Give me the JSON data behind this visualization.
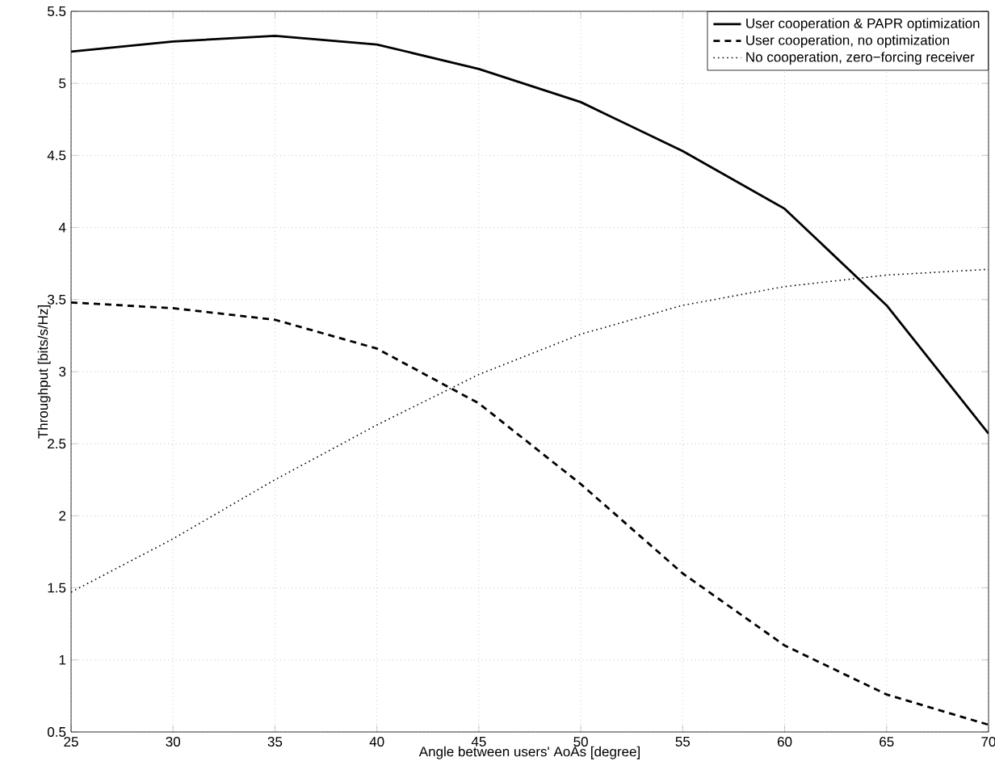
{
  "chart_data": {
    "type": "line",
    "xlabel": "Angle between users' AoAs [degree]",
    "ylabel": "Throughput [bits/s/Hz]",
    "x": [
      25,
      30,
      35,
      40,
      45,
      50,
      55,
      60,
      65,
      70
    ],
    "series": [
      {
        "name": "User cooperation & PAPR optimization",
        "color": "#000000",
        "line_style": "solid",
        "values": [
          5.22,
          5.29,
          5.33,
          5.27,
          5.1,
          4.87,
          4.53,
          4.13,
          3.46,
          2.57
        ]
      },
      {
        "name": "User cooperation, no optimization",
        "color": "#000000",
        "line_style": "dashed",
        "values": [
          3.48,
          3.44,
          3.36,
          3.16,
          2.78,
          2.22,
          1.6,
          1.1,
          0.76,
          0.55
        ]
      },
      {
        "name": "No cooperation, zero−forcing receiver",
        "color": "#000000",
        "line_style": "dotted",
        "values": [
          1.47,
          1.84,
          2.25,
          2.63,
          2.98,
          3.26,
          3.46,
          3.59,
          3.67,
          3.71
        ]
      }
    ],
    "xlim": [
      25,
      70
    ],
    "ylim": [
      0.5,
      5.5
    ],
    "xticks": [
      25,
      30,
      35,
      40,
      45,
      50,
      55,
      60,
      65,
      70
    ],
    "yticks": [
      0.5,
      1,
      1.5,
      2,
      2.5,
      3,
      3.5,
      4,
      4.5,
      5,
      5.5
    ],
    "grid": true,
    "legend": "top right",
    "marker": "none"
  }
}
